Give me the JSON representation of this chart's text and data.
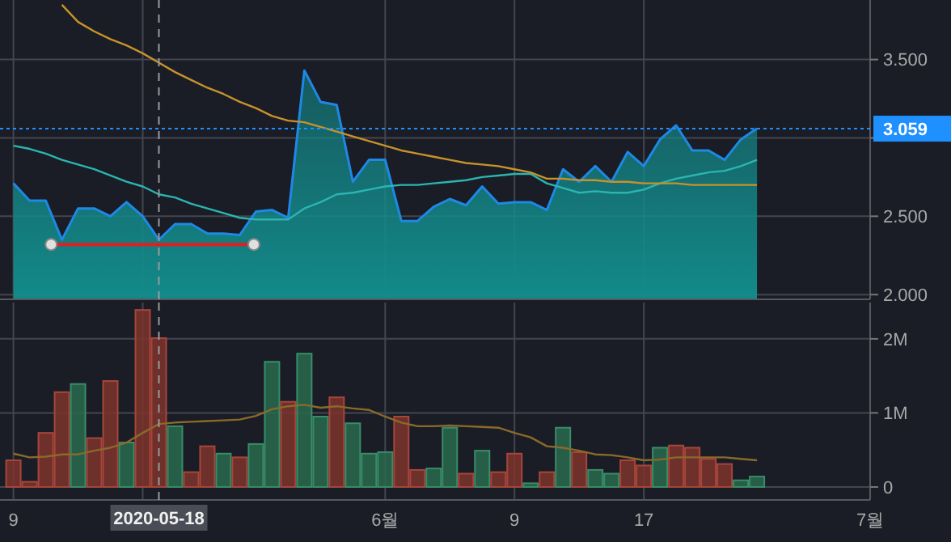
{
  "chart_data": [
    {
      "type": "area",
      "x": [
        "2020-05-09",
        "2020-05-10",
        "2020-05-11",
        "2020-05-12",
        "2020-05-13",
        "2020-05-14",
        "2020-05-15",
        "2020-05-16",
        "2020-05-17",
        "2020-05-18",
        "2020-05-19",
        "2020-05-20",
        "2020-05-21",
        "2020-05-22",
        "2020-05-23",
        "2020-05-24",
        "2020-05-25",
        "2020-05-26",
        "2020-05-27",
        "2020-05-28",
        "2020-05-29",
        "2020-05-30",
        "2020-05-31",
        "2020-06-01",
        "2020-06-02",
        "2020-06-03",
        "2020-06-04",
        "2020-06-05",
        "2020-06-06",
        "2020-06-07",
        "2020-06-08",
        "2020-06-09",
        "2020-06-10",
        "2020-06-11",
        "2020-06-12",
        "2020-06-13",
        "2020-06-14",
        "2020-06-15",
        "2020-06-16",
        "2020-06-17",
        "2020-06-18",
        "2020-06-19",
        "2020-06-20",
        "2020-06-21",
        "2020-06-22",
        "2020-06-23",
        "2020-06-24"
      ],
      "xlim": [
        "2020-05-08T18:30",
        "2020-07-01"
      ],
      "xticks": [
        {
          "value": "2020-05-09",
          "label": null
        },
        {
          "value": "2020-05-17",
          "label": null
        },
        {
          "value": "2020-06-01",
          "label": null
        },
        {
          "value": "2020-06-09",
          "label": null
        },
        {
          "value": "2020-06-17",
          "label": null
        },
        {
          "value": "2020-07-01",
          "label": null
        }
      ],
      "ylim": [
        1.97,
        3.88
      ],
      "yticks": [
        {
          "value": 2,
          "label": "2.000"
        },
        {
          "value": 2.5,
          "label": "2.500"
        },
        {
          "value": 3,
          "label": null
        },
        {
          "value": 3.5,
          "label": "3.500"
        }
      ],
      "tick_labels": "y",
      "grid": true,
      "ref_lines": [
        {
          "axis": "y",
          "value": 3.059,
          "label": "3.059",
          "color": "#1e90ff",
          "line_style": "dotted"
        },
        {
          "axis": "x",
          "value": "2020-05-18",
          "color": "#9a9a9a",
          "line_style": "dashed"
        }
      ],
      "series": [
        {
          "color": "#138a8a",
          "values": [
            2.71,
            2.6,
            2.6,
            2.35,
            2.55,
            2.55,
            2.5,
            2.59,
            2.5,
            2.35,
            2.45,
            2.45,
            2.39,
            2.39,
            2.38,
            2.53,
            2.54,
            2.49,
            3.43,
            3.23,
            3.21,
            2.72,
            2.86,
            2.86,
            2.47,
            2.47,
            2.56,
            2.61,
            2.57,
            2.69,
            2.58,
            2.59,
            2.59,
            2.54,
            2.8,
            2.72,
            2.82,
            2.72,
            2.91,
            2.82,
            2.99,
            3.08,
            2.92,
            2.92,
            2.86,
            2.99,
            3.06
          ]
        },
        {
          "type": "line",
          "color": "#2bb5b0",
          "values": [
            2.95,
            2.93,
            2.9,
            2.86,
            2.83,
            2.8,
            2.76,
            2.72,
            2.69,
            2.64,
            2.62,
            2.58,
            2.55,
            2.52,
            2.49,
            2.48,
            2.48,
            2.48,
            2.55,
            2.59,
            2.64,
            2.65,
            2.67,
            2.69,
            2.7,
            2.7,
            2.71,
            2.72,
            2.73,
            2.75,
            2.76,
            2.77,
            2.77,
            2.71,
            2.68,
            2.65,
            2.66,
            2.65,
            2.65,
            2.67,
            2.71,
            2.74,
            2.76,
            2.78,
            2.79,
            2.82,
            2.86
          ]
        },
        {
          "type": "line",
          "color": "#c8922a",
          "values": [
            null,
            null,
            null,
            3.85,
            3.74,
            3.68,
            3.63,
            3.59,
            3.54,
            3.48,
            3.42,
            3.37,
            3.32,
            3.28,
            3.23,
            3.19,
            3.14,
            3.11,
            3.1,
            3.07,
            3.04,
            3.01,
            2.98,
            2.95,
            2.92,
            2.9,
            2.88,
            2.86,
            2.84,
            2.83,
            2.82,
            2.8,
            2.78,
            2.74,
            2.74,
            2.73,
            2.73,
            2.72,
            2.72,
            2.71,
            2.71,
            2.71,
            2.7,
            2.7,
            2.7,
            2.7,
            2.7
          ]
        },
        {
          "type": "line",
          "color": "#e02020",
          "marker": "circle",
          "x": [
            "2020-05-11T08:00",
            "2020-05-23T21:00"
          ],
          "values": [
            2.32,
            2.32
          ]
        }
      ]
    },
    {
      "type": "bar",
      "x": [
        "2020-05-09",
        "2020-05-10",
        "2020-05-11",
        "2020-05-12",
        "2020-05-13",
        "2020-05-14",
        "2020-05-15",
        "2020-05-16",
        "2020-05-17",
        "2020-05-18",
        "2020-05-19",
        "2020-05-20",
        "2020-05-21",
        "2020-05-22",
        "2020-05-23",
        "2020-05-24",
        "2020-05-25",
        "2020-05-26",
        "2020-05-27",
        "2020-05-28",
        "2020-05-29",
        "2020-05-30",
        "2020-05-31",
        "2020-06-01",
        "2020-06-02",
        "2020-06-03",
        "2020-06-04",
        "2020-06-05",
        "2020-06-06",
        "2020-06-07",
        "2020-06-08",
        "2020-06-09",
        "2020-06-10",
        "2020-06-11",
        "2020-06-12",
        "2020-06-13",
        "2020-06-14",
        "2020-06-15",
        "2020-06-16",
        "2020-06-17",
        "2020-06-18",
        "2020-06-19",
        "2020-06-20",
        "2020-06-21",
        "2020-06-22",
        "2020-06-23",
        "2020-06-24"
      ],
      "xlim": [
        "2020-05-08T18:30",
        "2020-07-01"
      ],
      "xticks": [
        {
          "value": "2020-05-09",
          "label": "9"
        },
        {
          "value": "2020-05-17",
          "label": null
        },
        {
          "value": "2020-06-01",
          "label": "6월"
        },
        {
          "value": "2020-06-09",
          "label": "9"
        },
        {
          "value": "2020-06-17",
          "label": "17"
        },
        {
          "value": "2020-07-01",
          "label": "7월"
        }
      ],
      "ylim": [
        -175000,
        2490000
      ],
      "yticks": [
        0,
        {
          "value": 1000000,
          "label": "1M"
        },
        {
          "value": 2000000,
          "label": "2M"
        }
      ],
      "grid": true,
      "ref_lines": [
        {
          "axis": "x",
          "value": "2020-05-18",
          "label": "2020-05-18",
          "color": "#9a9a9a",
          "line_style": "dashed"
        }
      ],
      "series": [
        {
          "values": [
            360000,
            70000,
            730000,
            1280000,
            1390000,
            660000,
            1430000,
            600000,
            2390000,
            2010000,
            820000,
            200000,
            550000,
            450000,
            400000,
            580000,
            1690000,
            1150000,
            1800000,
            950000,
            1210000,
            860000,
            450000,
            470000,
            950000,
            230000,
            250000,
            800000,
            180000,
            490000,
            200000,
            450000,
            50000,
            200000,
            800000,
            470000,
            230000,
            180000,
            360000,
            290000,
            530000,
            560000,
            530000,
            380000,
            310000,
            90000,
            140000
          ],
          "colors": [
            "#7e342c",
            "#7e342c",
            "#7e342c",
            "#7e342c",
            "#2a6a4e",
            "#7e342c",
            "#7e342c",
            "#2a6a4e",
            "#7e342c",
            "#7e342c",
            "#2a6a4e",
            "#7e342c",
            "#7e342c",
            "#2a6a4e",
            "#7e342c",
            "#2a6a4e",
            "#2a6a4e",
            "#7e342c",
            "#2a6a4e",
            "#2a6a4e",
            "#7e342c",
            "#2a6a4e",
            "#2a6a4e",
            "#2a6a4e",
            "#7e342c",
            "#7e342c",
            "#2a6a4e",
            "#2a6a4e",
            "#7e342c",
            "#2a6a4e",
            "#7e342c",
            "#7e342c",
            "#2a6a4e",
            "#7e342c",
            "#2a6a4e",
            "#7e342c",
            "#2a6a4e",
            "#2a6a4e",
            "#7e342c",
            "#7e342c",
            "#2a6a4e",
            "#7e342c",
            "#7e342c",
            "#7e342c",
            "#7e342c",
            "#2a6a4e",
            "#2a6a4e"
          ]
        },
        {
          "type": "line",
          "color": "#8a6a2a",
          "values": [
            450000,
            400000,
            410000,
            440000,
            440000,
            490000,
            530000,
            600000,
            730000,
            850000,
            870000,
            880000,
            890000,
            900000,
            910000,
            960000,
            1050000,
            1090000,
            1110000,
            1070000,
            1090000,
            1060000,
            1040000,
            950000,
            870000,
            820000,
            820000,
            830000,
            820000,
            810000,
            800000,
            730000,
            670000,
            550000,
            530000,
            490000,
            440000,
            430000,
            400000,
            360000,
            370000,
            400000,
            400000,
            400000,
            400000,
            380000,
            360000
          ]
        }
      ]
    }
  ]
}
